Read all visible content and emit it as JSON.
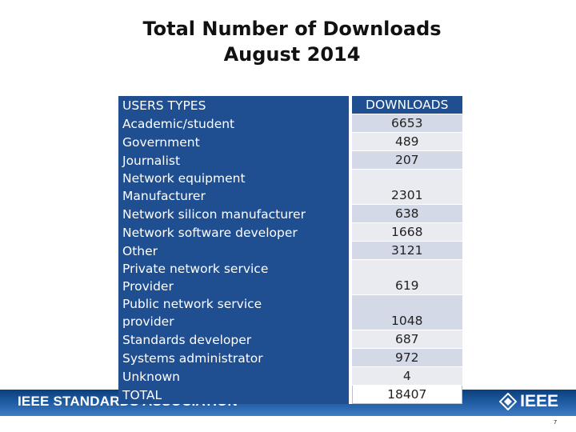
{
  "slide": {
    "title_line1": "Total Number of Downloads",
    "title_line2": "August 2014",
    "page_number": "7"
  },
  "footer": {
    "left_text": "IEEE STANDARDS ASSOCIATION",
    "logo_text": "IEEE",
    "colors": {
      "band": "#1d5aa2",
      "text": "#ffffff"
    }
  },
  "table": {
    "header": {
      "label": "USERS TYPES",
      "value": "DOWNLOADS"
    },
    "rows": [
      {
        "label": [
          "Academic/student"
        ],
        "value": "6653"
      },
      {
        "label": [
          "Government"
        ],
        "value": "489"
      },
      {
        "label": [
          "Journalist"
        ],
        "value": "207"
      },
      {
        "label": [
          "Network equipment",
          "Manufacturer"
        ],
        "value": "2301"
      },
      {
        "label": [
          "Network silicon manufacturer"
        ],
        "value": "638"
      },
      {
        "label": [
          "Network software developer"
        ],
        "value": "1668"
      },
      {
        "label": [
          "Other"
        ],
        "value": "3121"
      },
      {
        "label": [
          "Private network service",
          "Provider"
        ],
        "value": "619"
      },
      {
        "label": [
          "Public network service",
          "provider"
        ],
        "value": "1048"
      },
      {
        "label": [
          "Standards developer"
        ],
        "value": "687"
      },
      {
        "label": [
          "Systems administrator"
        ],
        "value": "972"
      },
      {
        "label": [
          "Unknown"
        ],
        "value": "4"
      }
    ],
    "total": {
      "label": "TOTAL",
      "value": "18407"
    },
    "colors": {
      "label_bg": "#1f4e91",
      "row_a": "#d3d9e6",
      "row_b": "#e9ebf1"
    }
  }
}
